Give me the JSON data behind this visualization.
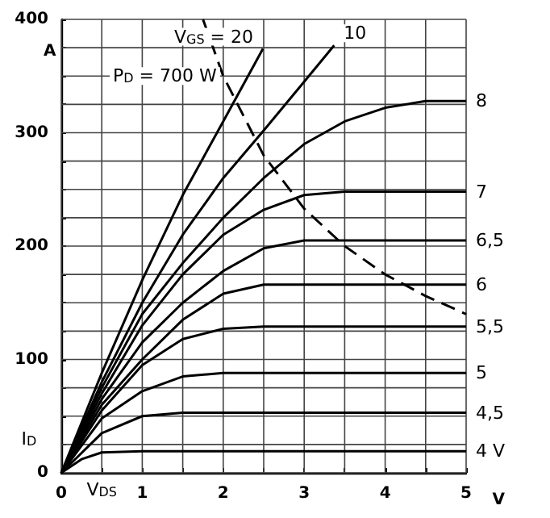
{
  "chart_data": {
    "type": "line",
    "xlabel": "V$_{DS}$",
    "ylabel": "I$_{D}$",
    "annotations": [
      "A",
      "V"
    ],
    "xlim": [
      0,
      5
    ],
    "ylim": [
      0,
      400
    ],
    "xticks": [
      0,
      {
        "value": 0.5,
        "label": null
      },
      1,
      {
        "value": 1.5,
        "label": null
      },
      2,
      {
        "value": 2.5,
        "label": null
      },
      3,
      {
        "value": 3.5,
        "label": null
      },
      4,
      {
        "value": 4.5,
        "label": null
      },
      5
    ],
    "yticks": [
      0,
      {
        "value": 25,
        "label": null
      },
      {
        "value": 50,
        "label": null
      },
      {
        "value": 75,
        "label": null
      },
      100,
      {
        "value": 125,
        "label": null
      },
      {
        "value": 150,
        "label": null
      },
      {
        "value": 175,
        "label": null
      },
      200,
      {
        "value": 225,
        "label": null
      },
      {
        "value": 250,
        "label": null
      },
      {
        "value": 275,
        "label": null
      },
      300,
      {
        "value": 325,
        "label": null
      },
      {
        "value": 350,
        "label": null
      },
      {
        "value": 375,
        "label": null
      },
      400
    ],
    "grid": true,
    "marker": "none",
    "line_style": "solid",
    "series": [
      {
        "name": "V$_{GS}$ = 20",
        "color": "#000000",
        "x": [
          0,
          0.5,
          1,
          1.5,
          2,
          2.49
        ],
        "values": [
          0,
          88,
          170,
          245,
          310,
          374
        ]
      },
      {
        "name": "10",
        "color": "#000000",
        "x": [
          0,
          0.5,
          1,
          1.5,
          2,
          2.5,
          3,
          3.37
        ],
        "values": [
          0,
          80,
          150,
          210,
          260,
          302,
          345,
          377
        ]
      },
      {
        "name": "8",
        "color": "#000000",
        "x": [
          0,
          0.5,
          1,
          1.5,
          2,
          2.5,
          3,
          3.5,
          4,
          4.5,
          5
        ],
        "values": [
          0,
          75,
          140,
          185,
          225,
          260,
          290,
          310,
          322,
          328,
          328
        ]
      },
      {
        "name": "7",
        "color": "#000000",
        "x": [
          0,
          0.5,
          1,
          1.5,
          2,
          2.5,
          3,
          3.5,
          5
        ],
        "values": [
          0,
          70,
          130,
          175,
          210,
          232,
          245,
          248,
          248
        ]
      },
      {
        "name": "6,5",
        "color": "#000000",
        "x": [
          0,
          0.5,
          1,
          1.5,
          2,
          2.5,
          3,
          5
        ],
        "values": [
          0,
          65,
          115,
          150,
          178,
          198,
          205,
          205
        ]
      },
      {
        "name": "6",
        "color": "#000000",
        "x": [
          0,
          0.5,
          1,
          1.5,
          2,
          2.5,
          5
        ],
        "values": [
          0,
          60,
          100,
          135,
          158,
          166,
          166
        ]
      },
      {
        "name": "5,5",
        "color": "#000000",
        "x": [
          0,
          0.5,
          1,
          1.5,
          2,
          2.5,
          5
        ],
        "values": [
          0,
          55,
          95,
          118,
          127,
          129,
          129
        ]
      },
      {
        "name": "5",
        "color": "#000000",
        "x": [
          0,
          0.5,
          1,
          1.5,
          2,
          5
        ],
        "values": [
          0,
          48,
          72,
          85,
          88,
          88
        ]
      },
      {
        "name": "4,5",
        "color": "#000000",
        "x": [
          0,
          0.5,
          1,
          1.5,
          5
        ],
        "values": [
          0,
          35,
          50,
          53,
          53
        ]
      },
      {
        "name": "4 V",
        "color": "#000000",
        "x": [
          0,
          0.25,
          0.5,
          1,
          5
        ],
        "values": [
          0,
          12,
          18,
          19,
          19
        ]
      },
      {
        "name": "P$_{D}$ = 700 W",
        "color": "#000000",
        "line_style": "dashed",
        "x": [
          1.75,
          2,
          2.5,
          3,
          3.5,
          4,
          4.5,
          5
        ],
        "values": [
          400,
          350,
          280,
          233,
          200,
          175,
          156,
          140
        ]
      }
    ]
  }
}
